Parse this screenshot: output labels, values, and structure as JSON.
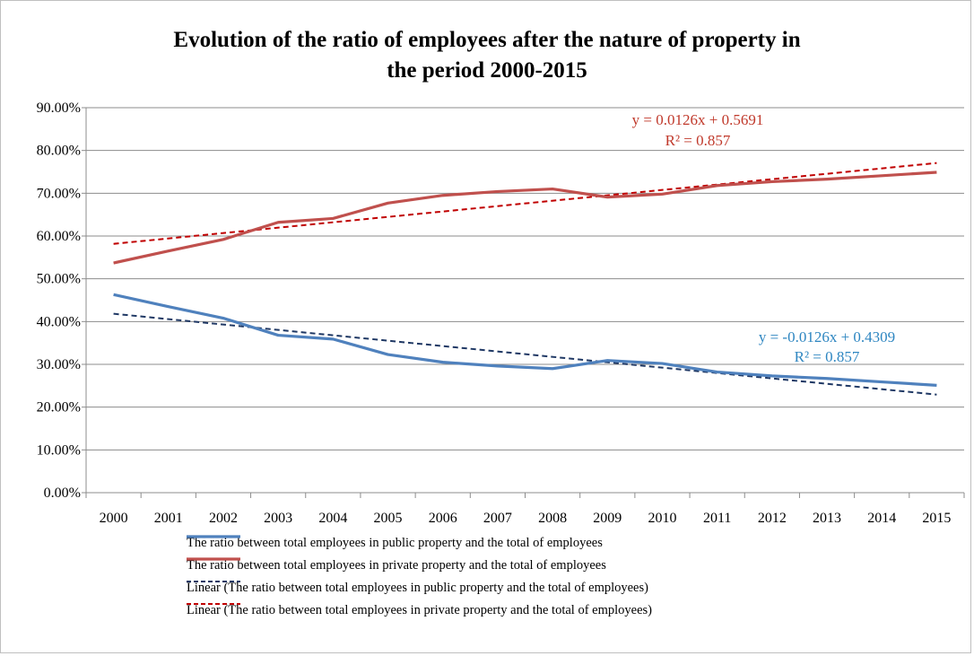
{
  "chart_data": {
    "type": "line",
    "title": [
      "Evolution  of the ratio of employees after the nature of property in",
      "the period 2000-2015"
    ],
    "x": [
      "2000",
      "2001",
      "2002",
      "2003",
      "2004",
      "2005",
      "2006",
      "2007",
      "2008",
      "2009",
      "2010",
      "2011",
      "2012",
      "2013",
      "2014",
      "2015"
    ],
    "ylim": [
      0,
      0.9
    ],
    "yticks": [
      "0.00%",
      "10.00%",
      "20.00%",
      "30.00%",
      "40.00%",
      "50.00%",
      "60.00%",
      "70.00%",
      "80.00%",
      "90.00%"
    ],
    "grid": true,
    "legend_position": "bottom",
    "series": [
      {
        "name": "The ratio between total employees in public property and the total of employees",
        "color": "#4f81bd",
        "style": "solid",
        "values": [
          0.463,
          0.435,
          0.408,
          0.368,
          0.359,
          0.323,
          0.305,
          0.296,
          0.29,
          0.309,
          0.302,
          0.282,
          0.273,
          0.267,
          0.259,
          0.251
        ]
      },
      {
        "name": "The ratio between total employees in private property and the total of employees",
        "color": "#c0504d",
        "style": "solid",
        "values": [
          0.537,
          0.565,
          0.592,
          0.632,
          0.641,
          0.677,
          0.695,
          0.704,
          0.71,
          0.691,
          0.698,
          0.718,
          0.727,
          0.733,
          0.741,
          0.749
        ]
      },
      {
        "name": "Linear (The ratio between total employees in public property and the total of employees)",
        "color": "#1f3864",
        "style": "dashed",
        "trend": {
          "slope": -0.0126,
          "intercept": 0.4309
        }
      },
      {
        "name": "Linear (The ratio between total employees in private property and the total of employees)",
        "color": "#c00000",
        "style": "dashed",
        "trend": {
          "slope": 0.0126,
          "intercept": 0.5691
        }
      }
    ],
    "annotations": {
      "private_eq": "y = 0.0126x + 0.5691",
      "private_r2": "R² = 0.857",
      "public_eq": "y = -0.0126x + 0.4309",
      "public_r2": "R² = 0.857"
    }
  }
}
